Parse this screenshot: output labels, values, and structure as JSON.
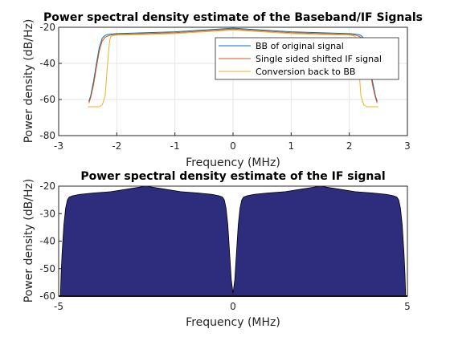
{
  "chart_data": [
    {
      "type": "line",
      "title": "Power spectral density estimate of the Baseband/IF Signals",
      "xlabel": "Frequency (MHz)",
      "ylabel": "Power density (dB/Hz)",
      "xlim": [
        -3,
        3
      ],
      "ylim": [
        -80,
        -20
      ],
      "xticks": [
        -3,
        -2,
        -1,
        0,
        1,
        2,
        3
      ],
      "yticks": [
        -80,
        -60,
        -40,
        -20
      ],
      "grid": true,
      "legend": "top-right",
      "series": [
        {
          "name": "BB of original signal",
          "color": "#0072BD",
          "x": [
            -2.48,
            -2.45,
            -2.4,
            -2.35,
            -2.3,
            -2.25,
            -2.2,
            -2.15,
            -2.1,
            -2.0,
            -1.5,
            -1.0,
            -0.5,
            0.0,
            0.5,
            1.0,
            1.5,
            2.0,
            2.1,
            2.15,
            2.2,
            2.25,
            2.3,
            2.35,
            2.4,
            2.45,
            2.48
          ],
          "y": [
            -61,
            -58,
            -50,
            -40,
            -31,
            -26,
            -24.5,
            -24,
            -23.7,
            -23.5,
            -23,
            -22.5,
            -21.5,
            -20.5,
            -21.5,
            -22.5,
            -23,
            -23.5,
            -23.7,
            -24,
            -24.5,
            -26,
            -31,
            -40,
            -50,
            -58,
            -61
          ]
        },
        {
          "name": "Single sided shifted IF signal",
          "color": "#D95319",
          "x": [
            -2.48,
            -2.45,
            -2.4,
            -2.35,
            -2.3,
            -2.25,
            -2.2,
            -2.15,
            -2.1,
            -2.0,
            -1.5,
            -1.0,
            -0.5,
            0.0,
            0.5,
            1.0,
            1.5,
            2.0,
            2.1,
            2.15,
            2.2,
            2.25,
            2.3,
            2.35,
            2.4,
            2.45,
            2.48
          ],
          "y": [
            -62,
            -59,
            -52,
            -42,
            -33,
            -27.5,
            -25.5,
            -24.8,
            -24.3,
            -24,
            -23.5,
            -23,
            -22,
            -21,
            -22,
            -23,
            -23.5,
            -24,
            -24.3,
            -24.8,
            -25.5,
            -27.5,
            -33,
            -42,
            -52,
            -59,
            -62
          ]
        },
        {
          "name": "Conversion back to BB",
          "color": "#EDB120",
          "x": [
            -2.5,
            -2.3,
            -2.25,
            -2.2,
            -2.17,
            -2.14,
            -2.12,
            -2.1,
            -2.05,
            -2.0,
            -1.5,
            -1.0,
            -0.5,
            0.0,
            0.5,
            1.0,
            1.5,
            2.0,
            2.05,
            2.1,
            2.12,
            2.14,
            2.17,
            2.2,
            2.25,
            2.3,
            2.5
          ],
          "y": [
            -64,
            -64,
            -63,
            -58,
            -45,
            -33,
            -27,
            -25,
            -24.5,
            -24.3,
            -24,
            -23.5,
            -22.5,
            -21.5,
            -22.5,
            -23.5,
            -24,
            -24.3,
            -24.5,
            -25,
            -27,
            -33,
            -45,
            -58,
            -63,
            -64,
            -64
          ]
        }
      ]
    },
    {
      "type": "area",
      "title": "Power spectral density estimate of the IF signal",
      "xlabel": "Frequency (MHz)",
      "ylabel": "Power density (dB/Hz)",
      "xlim": [
        -5,
        5
      ],
      "ylim": [
        -60,
        -20
      ],
      "xticks": [
        -5,
        0,
        5
      ],
      "yticks": [
        -60,
        -50,
        -40,
        -30,
        -20
      ],
      "grid": false,
      "series": [
        {
          "color": "#2E2D7D",
          "x": [
            -4.95,
            -4.93,
            -4.9,
            -4.85,
            -4.8,
            -4.75,
            -4.7,
            -4.6,
            -4.4,
            -4.0,
            -3.5,
            -3.0,
            -2.5,
            -2.0,
            -1.5,
            -1.0,
            -0.6,
            -0.4,
            -0.3,
            -0.25,
            -0.2,
            -0.15,
            -0.1,
            -0.05,
            0.0,
            0.05,
            0.1,
            0.15,
            0.2,
            0.25,
            0.3,
            0.4,
            0.6,
            1.0,
            1.5,
            2.0,
            2.5,
            3.0,
            3.5,
            4.0,
            4.4,
            4.6,
            4.7,
            4.75,
            4.8,
            4.85,
            4.9,
            4.93,
            4.95
          ],
          "y": [
            -60,
            -52,
            -44,
            -34,
            -28,
            -25,
            -24,
            -23.5,
            -23,
            -22.5,
            -22,
            -21,
            -20,
            -21,
            -22,
            -22.5,
            -23,
            -23.5,
            -24,
            -25,
            -28,
            -34,
            -44,
            -54,
            -59,
            -54,
            -44,
            -34,
            -28,
            -25,
            -24,
            -23.5,
            -23,
            -22.5,
            -22,
            -21,
            -20,
            -21,
            -22,
            -22.5,
            -23,
            -23.5,
            -24,
            -25,
            -28,
            -34,
            -44,
            -52,
            -60
          ]
        }
      ]
    }
  ]
}
